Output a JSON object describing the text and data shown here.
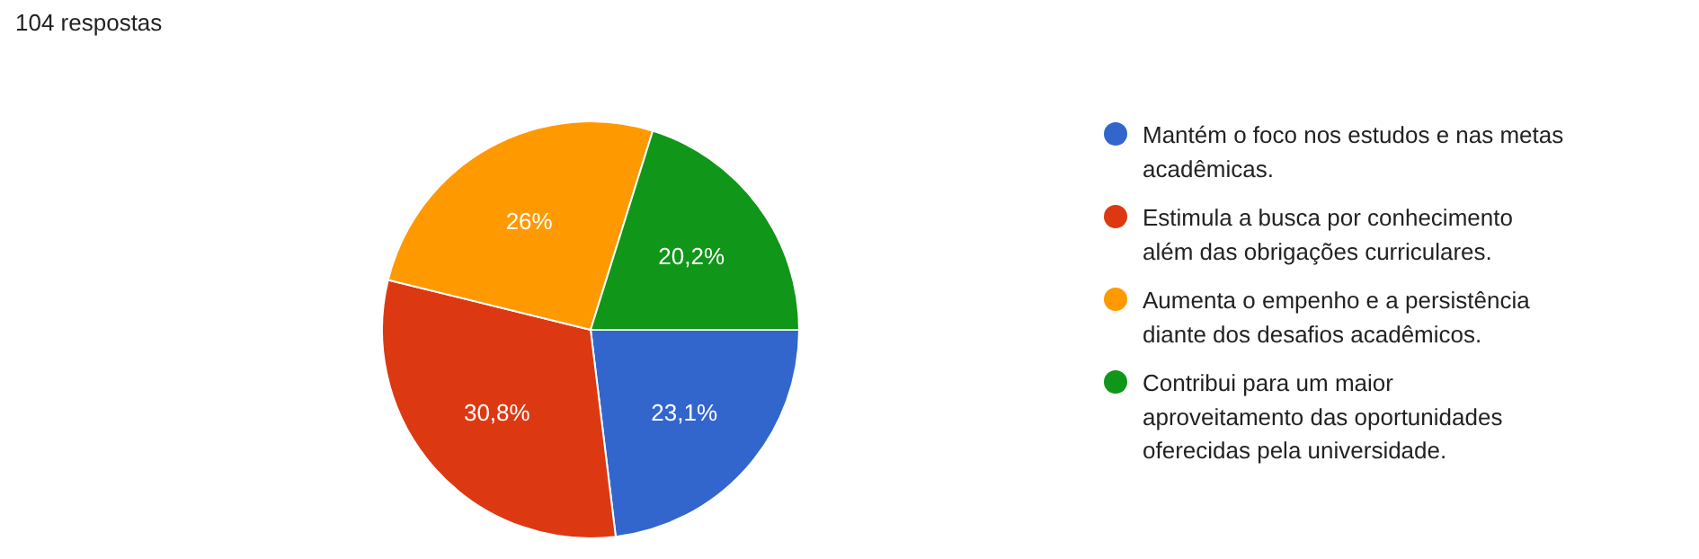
{
  "chart_data": {
    "type": "pie",
    "title": "104 respostas",
    "categories": [
      "Mantém o foco nos estudos e nas metas acadêmicas.",
      "Estimula a busca por conhecimento além das obrigações curriculares.",
      "Aumenta o empenho e a persistência diante dos desafios acadêmicos.",
      "Contribui para um maior aproveitamento das oportunidades oferecidas pela universidade."
    ],
    "values": [
      23.1,
      30.8,
      26,
      20.2
    ],
    "colors": [
      "#3366cc",
      "#dc3912",
      "#ff9900",
      "#109618"
    ],
    "value_labels": [
      "23,1%",
      "30,8%",
      "26%",
      "20,2%"
    ],
    "legend": "right"
  }
}
